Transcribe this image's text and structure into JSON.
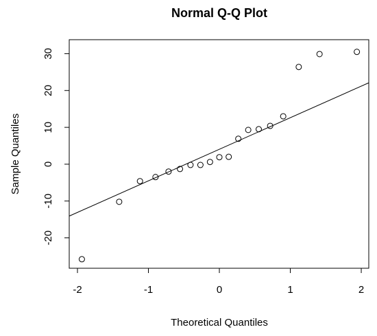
{
  "chart_data": {
    "type": "scatter",
    "title": "Normal Q-Q Plot",
    "x_label": "Theoretical Quantiles",
    "y_label": "Sample Quantiles",
    "x": [
      -1.938,
      -1.412,
      -1.119,
      -0.9,
      -0.716,
      -0.555,
      -0.407,
      -0.267,
      -0.132,
      0,
      0.132,
      0.267,
      0.407,
      0.555,
      0.716,
      0.9,
      1.119,
      1.412,
      1.938
    ],
    "y": [
      -25.8,
      -10.2,
      -4.6,
      -3.5,
      -2.0,
      -1.3,
      -0.2,
      -0.2,
      0.6,
      1.9,
      2.0,
      6.9,
      9.3,
      9.5,
      10.4,
      13.0,
      26.4,
      29.9,
      30.5
    ],
    "reference_line": {
      "intercept": 4.05,
      "slope": 8.57
    },
    "color": "#000000",
    "xlim": [
      -2.116,
      2.106
    ],
    "ylim": [
      -28.25,
      33.8
    ],
    "xticks": [
      -2,
      -1,
      0,
      1,
      2
    ],
    "yticks": [
      -20,
      -10,
      0,
      10,
      20,
      30
    ]
  }
}
